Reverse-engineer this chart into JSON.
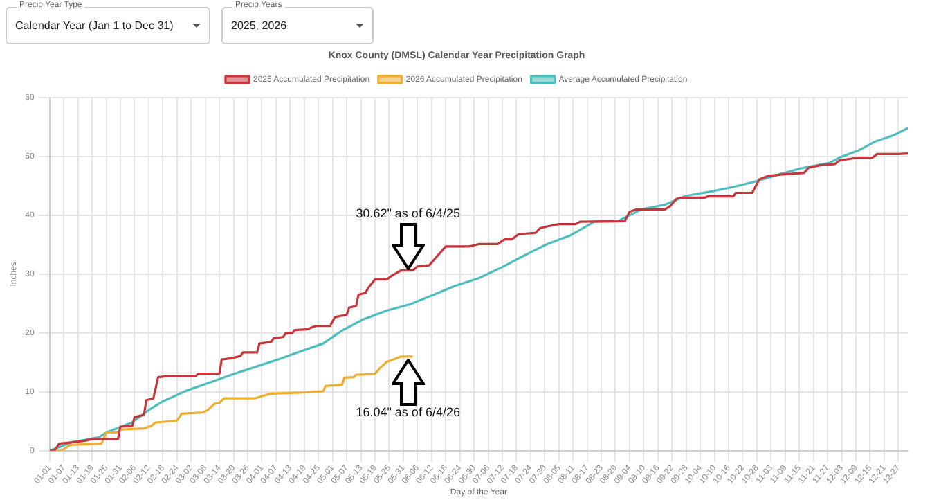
{
  "chart_data": {
    "type": "line",
    "title": "Knox County (DMSL) Calendar Year Precipitation Graph",
    "xlabel": "Day of the Year",
    "ylabel": "Inches",
    "xlim": [
      "--01-01",
      "--12-31"
    ],
    "xticks": [
      {
        "value": "--01-01",
        "label": "01-01"
      },
      {
        "value": "--01-07",
        "label": "01-07"
      },
      {
        "value": "--01-13",
        "label": "01-13"
      },
      {
        "value": "--01-19",
        "label": "01-19"
      },
      {
        "value": "--01-25",
        "label": "01-25"
      },
      {
        "value": "--01-31",
        "label": "01-31"
      },
      {
        "value": "--02-06",
        "label": "02-06"
      },
      {
        "value": "--02-12",
        "label": "02-12"
      },
      {
        "value": "--02-18",
        "label": "02-18"
      },
      {
        "value": "--02-24",
        "label": "02-24"
      },
      {
        "value": "--03-02",
        "label": "03-02"
      },
      {
        "value": "--03-08",
        "label": "03-08"
      },
      {
        "value": "--03-14",
        "label": "03-14"
      },
      {
        "value": "--03-20",
        "label": "03-20"
      },
      {
        "value": "--03-26",
        "label": "03-26"
      },
      {
        "value": "--04-01",
        "label": "04-01"
      },
      {
        "value": "--04-07",
        "label": "04-07"
      },
      {
        "value": "--04-13",
        "label": "04-13"
      },
      {
        "value": "--04-19",
        "label": "04-19"
      },
      {
        "value": "--04-25",
        "label": "04-25"
      },
      {
        "value": "--05-01",
        "label": "05-01"
      },
      {
        "value": "--05-07",
        "label": "05-07"
      },
      {
        "value": "--05-13",
        "label": "05-13"
      },
      {
        "value": "--05-19",
        "label": "05-19"
      },
      {
        "value": "--05-25",
        "label": "05-25"
      },
      {
        "value": "--05-31",
        "label": "05-31"
      },
      {
        "value": "--06-06",
        "label": "06-06"
      },
      {
        "value": "--06-12",
        "label": "06-12"
      },
      {
        "value": "--06-18",
        "label": "06-18"
      },
      {
        "value": "--06-24",
        "label": "06-24"
      },
      {
        "value": "--06-30",
        "label": "06-30"
      },
      {
        "value": "--07-06",
        "label": "07-06"
      },
      {
        "value": "--07-12",
        "label": "07-12"
      },
      {
        "value": "--07-18",
        "label": "07-18"
      },
      {
        "value": "--07-24",
        "label": "07-24"
      },
      {
        "value": "--07-30",
        "label": "07-30"
      },
      {
        "value": "--08-05",
        "label": "08-05"
      },
      {
        "value": "--08-11",
        "label": "08-11"
      },
      {
        "value": "--08-17",
        "label": "08-17"
      },
      {
        "value": "--08-23",
        "label": "08-23"
      },
      {
        "value": "--08-29",
        "label": "08-29"
      },
      {
        "value": "--09-04",
        "label": "09-04"
      },
      {
        "value": "--09-10",
        "label": "09-10"
      },
      {
        "value": "--09-16",
        "label": "09-16"
      },
      {
        "value": "--09-22",
        "label": "09-22"
      },
      {
        "value": "--09-28",
        "label": "09-28"
      },
      {
        "value": "--10-04",
        "label": "10-04"
      },
      {
        "value": "--10-10",
        "label": "10-10"
      },
      {
        "value": "--10-16",
        "label": "10-16"
      },
      {
        "value": "--10-22",
        "label": "10-22"
      },
      {
        "value": "--10-28",
        "label": "10-28"
      },
      {
        "value": "--11-03",
        "label": "11-03"
      },
      {
        "value": "--11-09",
        "label": "11-09"
      },
      {
        "value": "--11-15",
        "label": "11-15"
      },
      {
        "value": "--11-21",
        "label": "11-21"
      },
      {
        "value": "--11-27",
        "label": "11-27"
      },
      {
        "value": "--12-03",
        "label": "12-03"
      },
      {
        "value": "--12-09",
        "label": "12-09"
      },
      {
        "value": "--12-15",
        "label": "12-15"
      },
      {
        "value": "--12-21",
        "label": "12-21"
      },
      {
        "value": "--12-27",
        "label": "12-27"
      }
    ],
    "ylim": [
      0,
      60
    ],
    "yticks": [
      0,
      10,
      20,
      30,
      40,
      50,
      60
    ],
    "grid": true,
    "legend": "top",
    "marker": "none",
    "line_style": "solid",
    "series": [
      {
        "name": "2025 Accumulated Precipitation",
        "color": "#c9353a",
        "x": [
          "--01-01",
          "--01-03",
          "--01-05",
          "--01-10",
          "--01-16",
          "--01-19",
          "--01-30",
          "--01-31",
          "--02-05",
          "--02-06",
          "--02-10",
          "--02-11",
          "--02-14",
          "--02-16",
          "--02-20",
          "--03-04",
          "--03-05",
          "--03-14",
          "--03-15",
          "--03-19",
          "--03-23",
          "--03-24",
          "--03-30",
          "--03-31",
          "--04-05",
          "--04-06",
          "--04-10",
          "--04-11",
          "--04-14",
          "--04-15",
          "--04-20",
          "--04-24",
          "--04-30",
          "--05-02",
          "--05-07",
          "--05-08",
          "--05-11",
          "--05-12",
          "--05-15",
          "--05-16",
          "--05-19",
          "--05-24",
          "--05-26",
          "--05-30",
          "--06-04",
          "--06-06",
          "--06-11",
          "--06-18",
          "--06-28",
          "--07-02",
          "--07-10",
          "--07-13",
          "--07-16",
          "--07-19",
          "--07-26",
          "--07-28",
          "--07-31",
          "--08-05",
          "--08-12",
          "--08-14",
          "--09-02",
          "--09-04",
          "--09-07",
          "--09-19",
          "--09-21",
          "--09-24",
          "--09-26",
          "--10-06",
          "--10-07",
          "--10-18",
          "--10-19",
          "--10-26",
          "--10-29",
          "--11-02",
          "--11-07",
          "--11-17",
          "--11-19",
          "--11-24",
          "--11-30",
          "--12-02",
          "--12-10",
          "--12-16",
          "--12-18",
          "--12-27",
          "--12-31"
        ],
        "values": [
          0,
          0,
          1.2,
          1.4,
          1.7,
          2.0,
          2.0,
          4.1,
          4.2,
          5.7,
          6.1,
          8.6,
          8.9,
          12.5,
          12.7,
          12.7,
          13.1,
          13.1,
          15.5,
          15.7,
          16.1,
          16.7,
          16.7,
          18.2,
          18.5,
          19.1,
          19.3,
          19.9,
          20.0,
          20.5,
          20.6,
          21.2,
          21.2,
          22.7,
          23.1,
          24.3,
          24.6,
          26.5,
          26.8,
          27.6,
          29.1,
          29.1,
          29.7,
          30.6,
          30.6,
          31.3,
          31.5,
          34.7,
          34.7,
          35.1,
          35.1,
          35.9,
          35.9,
          36.8,
          37.0,
          37.8,
          38.1,
          38.5,
          38.5,
          38.9,
          39.0,
          40.6,
          41.0,
          41.0,
          41.5,
          42.8,
          43.0,
          43.0,
          43.2,
          43.2,
          43.8,
          43.8,
          46.1,
          46.7,
          46.9,
          47.2,
          48.1,
          48.5,
          48.7,
          49.3,
          49.8,
          49.8,
          50.4,
          50.4,
          50.5
        ]
      },
      {
        "name": "2026 Accumulated Precipitation",
        "color": "#f0ad2e",
        "x": [
          "--01-01",
          "--01-06",
          "--01-09",
          "--01-10",
          "--01-23",
          "--01-25",
          "--01-30",
          "--01-31",
          "--02-10",
          "--02-13",
          "--02-15",
          "--02-24",
          "--02-26",
          "--03-07",
          "--03-09",
          "--03-12",
          "--03-14",
          "--03-16",
          "--03-29",
          "--04-03",
          "--04-05",
          "--04-19",
          "--04-27",
          "--04-28",
          "--05-05",
          "--05-06",
          "--05-10",
          "--05-11",
          "--05-19",
          "--05-21",
          "--05-24",
          "--05-27",
          "--05-30",
          "--06-04"
        ],
        "values": [
          0,
          0,
          0.8,
          1.0,
          1.2,
          3.1,
          3.1,
          3.6,
          3.8,
          4.2,
          4.8,
          5.1,
          6.3,
          6.5,
          6.9,
          8.0,
          8.1,
          8.9,
          8.9,
          9.5,
          9.7,
          9.9,
          10.1,
          11.0,
          11.2,
          12.4,
          12.5,
          12.9,
          13.0,
          14.0,
          15.1,
          15.5,
          16.0,
          16.0
        ]
      },
      {
        "name": "Average Accumulated Precipitation",
        "color": "#4dbdbd",
        "x": [
          "--01-01",
          "--01-10",
          "--01-22",
          "--01-25",
          "--02-05",
          "--02-12",
          "--02-18",
          "--02-28",
          "--03-10",
          "--03-19",
          "--03-29",
          "--04-08",
          "--04-17",
          "--04-27",
          "--05-05",
          "--05-14",
          "--05-24",
          "--06-03",
          "--06-13",
          "--06-22",
          "--07-02",
          "--07-12",
          "--07-22",
          "--07-31",
          "--08-10",
          "--08-20",
          "--08-30",
          "--09-09",
          "--09-19",
          "--09-28",
          "--10-08",
          "--10-18",
          "--10-28",
          "--11-07",
          "--11-16",
          "--11-28",
          "--12-02",
          "--12-10",
          "--12-17",
          "--12-25",
          "--12-31"
        ],
        "values": [
          0,
          1.4,
          2.3,
          3.1,
          4.8,
          6.9,
          8.4,
          10.2,
          11.6,
          12.9,
          14.2,
          15.5,
          16.8,
          18.2,
          20.4,
          22.3,
          23.8,
          24.9,
          26.5,
          28.0,
          29.3,
          31.2,
          33.3,
          35.1,
          36.6,
          38.9,
          39.0,
          41.0,
          41.8,
          43.3,
          44.0,
          44.8,
          45.8,
          47.0,
          48.0,
          48.9,
          49.8,
          51.0,
          52.5,
          53.6,
          54.8
        ]
      }
    ],
    "annotations": [
      "Precip Year Type",
      "Calendar Year (Jan 1 to Dec 31)",
      "Precip Years",
      "2025, 2026",
      "30.62\" as of 6/4/25",
      "16.04\" as of 6/4/26"
    ]
  }
}
